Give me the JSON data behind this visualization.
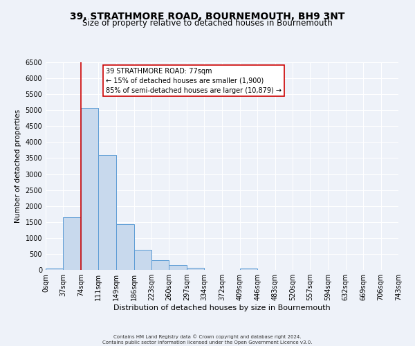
{
  "title": "39, STRATHMORE ROAD, BOURNEMOUTH, BH9 3NT",
  "subtitle": "Size of property relative to detached houses in Bournemouth",
  "xlabel": "Distribution of detached houses by size in Bournemouth",
  "ylabel": "Number of detached properties",
  "bin_edges": [
    0,
    37,
    74,
    111,
    149,
    186,
    223,
    260,
    297,
    334,
    372,
    409,
    446,
    483,
    520,
    557,
    594,
    632,
    669,
    706,
    743
  ],
  "bin_labels": [
    "0sqm",
    "37sqm",
    "74sqm",
    "111sqm",
    "149sqm",
    "186sqm",
    "223sqm",
    "260sqm",
    "297sqm",
    "334sqm",
    "372sqm",
    "409sqm",
    "446sqm",
    "483sqm",
    "520sqm",
    "557sqm",
    "594sqm",
    "632sqm",
    "669sqm",
    "706sqm",
    "743sqm"
  ],
  "counts": [
    50,
    1650,
    5080,
    3600,
    1420,
    620,
    300,
    150,
    60,
    10,
    0,
    50,
    0,
    0,
    0,
    0,
    0,
    0,
    0,
    0
  ],
  "bar_color": "#c8d9ed",
  "bar_edge_color": "#5b9bd5",
  "red_line_x": 74,
  "annotation_title": "39 STRATHMORE ROAD: 77sqm",
  "annotation_line1": "← 15% of detached houses are smaller (1,900)",
  "annotation_line2": "85% of semi-detached houses are larger (10,879) →",
  "annotation_box_color": "#ffffff",
  "annotation_box_edge_color": "#cc0000",
  "red_line_color": "#cc0000",
  "ylim": [
    0,
    6500
  ],
  "yticks": [
    0,
    500,
    1000,
    1500,
    2000,
    2500,
    3000,
    3500,
    4000,
    4500,
    5000,
    5500,
    6000,
    6500
  ],
  "footer_line1": "Contains HM Land Registry data © Crown copyright and database right 2024.",
  "footer_line2": "Contains public sector information licensed under the Open Government Licence v3.0.",
  "bg_color": "#eef2f9",
  "grid_color": "#ffffff",
  "title_fontsize": 10,
  "subtitle_fontsize": 8.5,
  "xlabel_fontsize": 8,
  "ylabel_fontsize": 7.5,
  "tick_fontsize": 7,
  "annotation_fontsize": 7,
  "footer_fontsize": 5
}
